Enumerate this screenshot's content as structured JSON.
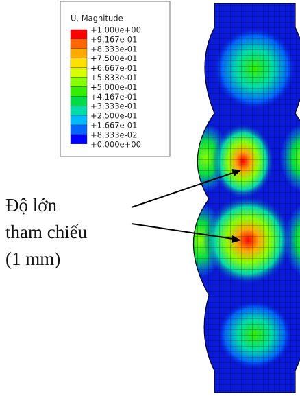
{
  "legend": {
    "title": "U, Magnitude",
    "labels": [
      "+1.000e+00",
      "+9.167e-01",
      "+8.333e-01",
      "+7.500e-01",
      "+6.667e-01",
      "+5.833e-01",
      "+5.000e-01",
      "+4.167e-01",
      "+3.333e-01",
      "+2.500e-01",
      "+1.667e-01",
      "+8.333e-02",
      "+0.000e+00"
    ],
    "colors": [
      "#ff0000",
      "#ff6600",
      "#ffaa00",
      "#ffe000",
      "#d8ff00",
      "#88ff00",
      "#33ee00",
      "#00dd44",
      "#00ddaa",
      "#00bbff",
      "#0066ff",
      "#0000ff"
    ]
  },
  "annotation": {
    "lines": [
      "Độ lớn",
      "tham chiếu",
      "(1 mm)"
    ]
  }
}
